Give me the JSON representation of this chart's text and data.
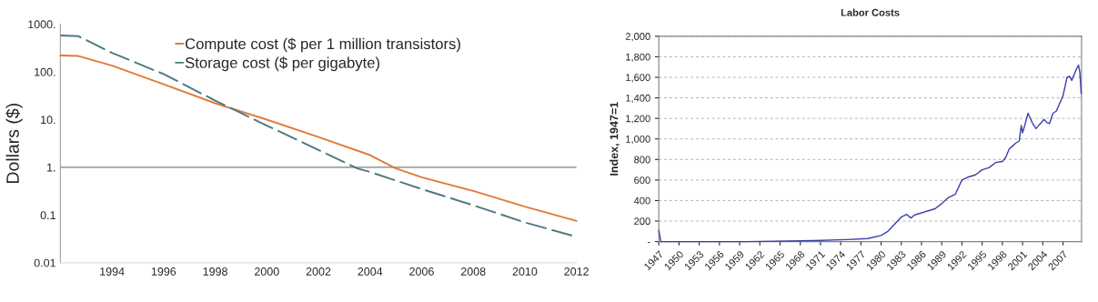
{
  "chart_data": [
    {
      "type": "line",
      "ylabel": "Dollars ($)",
      "log": true,
      "legend": "top",
      "grid": false,
      "xlim": [
        1992,
        2012
      ],
      "xticks": [
        1994,
        1996,
        1998,
        2000,
        2002,
        2004,
        2006,
        2008,
        2010,
        2012
      ],
      "ylim": [
        0.01,
        1000
      ],
      "yticks": [
        {
          "value": 0.01,
          "label": "0.01"
        },
        {
          "value": 0.1,
          "label": "0.1"
        },
        {
          "value": 1,
          "label": "1."
        },
        {
          "value": 10,
          "label": "10."
        },
        {
          "value": 100,
          "label": "100."
        },
        {
          "value": 1000,
          "label": "1000."
        }
      ],
      "ref_lines": [
        {
          "axis": "y",
          "value": 1,
          "color": "#a0a0a0"
        }
      ],
      "series": [
        {
          "name": "Compute cost ($ per 1 million transistors)",
          "color": "#e07b39",
          "line_style": "solid",
          "x": [
            1992,
            1992.7,
            1994,
            1996,
            1998,
            2000,
            2002,
            2004,
            2005,
            2006,
            2008,
            2010,
            2012
          ],
          "values": [
            220,
            215,
            135,
            55,
            22,
            10,
            4.3,
            1.8,
            0.95,
            0.62,
            0.32,
            0.15,
            0.075
          ]
        },
        {
          "name": "Storage cost ($ per gigabyte)",
          "color": "#4a7a80",
          "line_style": "dashed",
          "x": [
            1992,
            1992.7,
            1994,
            1996,
            1998,
            2000,
            2002,
            2003.5,
            2004,
            2006,
            2008,
            2010,
            2012
          ],
          "values": [
            580,
            560,
            250,
            90,
            25,
            7.5,
            2.3,
            0.95,
            0.8,
            0.35,
            0.16,
            0.07,
            0.035
          ]
        }
      ]
    },
    {
      "type": "line",
      "title": "Labor Costs",
      "ylabel": "Index, 1947=1",
      "grid": "y",
      "legend": false,
      "xlim": [
        1947,
        2009.75
      ],
      "xticks": [
        1947,
        1950,
        1953,
        1956,
        1959,
        1962,
        1965,
        1968,
        1971,
        1974,
        1977,
        1980,
        1983,
        1986,
        1989,
        1992,
        1995,
        1998,
        2001,
        2004,
        2007
      ],
      "ylim": [
        0,
        2000
      ],
      "yticks": [
        {
          "value": 0,
          "label": "-"
        },
        200,
        400,
        600,
        800,
        {
          "value": 1000,
          "label": "1,000"
        },
        {
          "value": 1200,
          "label": "1,200"
        },
        {
          "value": 1400,
          "label": "1,400"
        },
        {
          "value": 1600,
          "label": "1,600"
        },
        {
          "value": 1800,
          "label": "1,800"
        },
        {
          "value": 2000,
          "label": "2,000"
        }
      ],
      "series": [
        {
          "color": "#3b3fa8",
          "line_style": "solid",
          "x": [
            1947,
            1947.3,
            1948,
            1960,
            1970,
            1975,
            1978,
            1980,
            1981,
            1982,
            1983,
            1983.8,
            1984.4,
            1985,
            1987,
            1988,
            1989,
            1990,
            1991,
            1992,
            1993,
            1994,
            1995,
            1996,
            1997,
            1998,
            1998.5,
            1999,
            1999.5,
            2000,
            2000.5,
            2000.8,
            2001,
            2001.4,
            2001.8,
            2002.5,
            2003,
            2003.5,
            2004.2,
            2004.6,
            2005,
            2005.5,
            2006,
            2007,
            2007.6,
            2008,
            2008.3,
            2008.8,
            2009,
            2009.3,
            2009.5,
            2009.7
          ],
          "values": [
            110,
            0,
            0,
            0,
            10,
            20,
            30,
            60,
            100,
            170,
            240,
            265,
            230,
            260,
            300,
            320,
            370,
            430,
            460,
            600,
            630,
            650,
            700,
            720,
            770,
            780,
            820,
            900,
            930,
            960,
            980,
            1130,
            1060,
            1150,
            1250,
            1150,
            1100,
            1140,
            1190,
            1160,
            1150,
            1250,
            1270,
            1420,
            1600,
            1610,
            1570,
            1650,
            1680,
            1720,
            1650,
            1440
          ]
        }
      ]
    }
  ]
}
